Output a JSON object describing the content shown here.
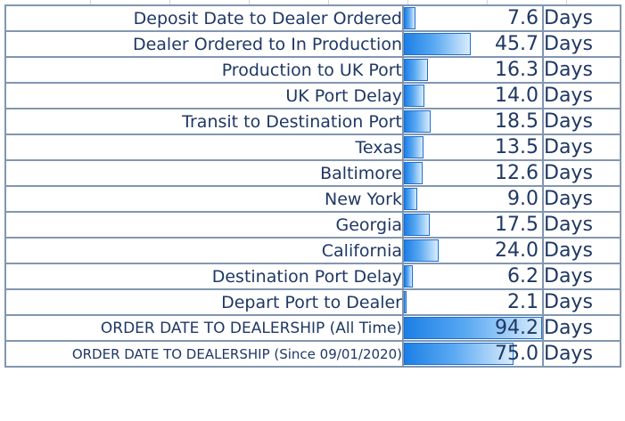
{
  "unit_label": "Days",
  "max_days": 94.2,
  "rows": [
    {
      "label": "Deposit Date to Dealer Ordered",
      "value": "7.6",
      "days": 7.6
    },
    {
      "label": "Dealer Ordered to In Production",
      "value": "45.7",
      "days": 45.7
    },
    {
      "label": "Production to UK Port",
      "value": "16.3",
      "days": 16.3
    },
    {
      "label": "UK Port Delay",
      "value": "14.0",
      "days": 14.0
    },
    {
      "label": "Transit to Destination Port",
      "value": "18.5",
      "days": 18.5
    },
    {
      "label": "Texas",
      "value": "13.5",
      "days": 13.5
    },
    {
      "label": "Baltimore",
      "value": "12.6",
      "days": 12.6
    },
    {
      "label": "New York",
      "value": "9.0",
      "days": 9.0
    },
    {
      "label": "Georgia",
      "value": "17.5",
      "days": 17.5
    },
    {
      "label": "California",
      "value": "24.0",
      "days": 24.0
    },
    {
      "label": "Destination Port Delay",
      "value": "6.2",
      "days": 6.2
    },
    {
      "label": "Depart Port to Dealer",
      "value": "2.1",
      "days": 2.1
    },
    {
      "label": "ORDER DATE TO DEALERSHIP (All Time)",
      "value": "94.2",
      "days": 94.2
    },
    {
      "label": "ORDER DATE TO DEALERSHIP (Since 09/01/2020)",
      "value": "75.0",
      "days": 75.0
    }
  ],
  "colors": {
    "text": "#1f3864",
    "border": "#8296b0",
    "bar_dark": "#1c7fe6",
    "bar_light": "#d9ecfc"
  }
}
